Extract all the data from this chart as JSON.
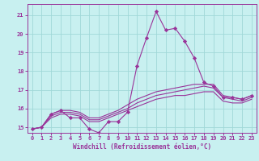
{
  "title": "",
  "xlabel": "Windchill (Refroidissement éolien,°C)",
  "ylabel": "",
  "background_color": "#c8f0f0",
  "grid_color": "#a0d8d8",
  "line_color": "#993399",
  "xlim": [
    -0.5,
    23.5
  ],
  "ylim": [
    14.7,
    21.6
  ],
  "yticks": [
    15,
    16,
    17,
    18,
    19,
    20,
    21
  ],
  "xticks": [
    0,
    1,
    2,
    3,
    4,
    5,
    6,
    7,
    8,
    9,
    10,
    11,
    12,
    13,
    14,
    15,
    16,
    17,
    18,
    19,
    20,
    21,
    22,
    23
  ],
  "x": [
    0,
    1,
    2,
    3,
    4,
    5,
    6,
    7,
    8,
    9,
    10,
    11,
    12,
    13,
    14,
    15,
    16,
    17,
    18,
    19,
    20,
    21,
    22,
    23
  ],
  "series": [
    [
      14.9,
      15.0,
      15.7,
      15.9,
      15.5,
      15.5,
      14.9,
      14.7,
      15.3,
      15.3,
      15.8,
      18.3,
      19.8,
      21.2,
      20.2,
      20.3,
      19.6,
      18.7,
      17.4,
      17.2,
      16.6,
      16.6,
      16.5,
      16.7
    ],
    [
      14.9,
      15.0,
      15.7,
      15.9,
      15.9,
      15.8,
      15.5,
      15.5,
      15.7,
      15.9,
      16.2,
      16.5,
      16.7,
      16.9,
      17.0,
      17.1,
      17.2,
      17.3,
      17.3,
      17.3,
      16.7,
      16.6,
      16.5,
      16.7
    ],
    [
      14.9,
      15.0,
      15.6,
      15.8,
      15.8,
      15.7,
      15.4,
      15.4,
      15.6,
      15.8,
      16.0,
      16.3,
      16.5,
      16.7,
      16.8,
      16.9,
      17.0,
      17.1,
      17.2,
      17.1,
      16.6,
      16.5,
      16.4,
      16.6
    ],
    [
      14.9,
      15.0,
      15.5,
      15.7,
      15.7,
      15.6,
      15.3,
      15.3,
      15.5,
      15.7,
      15.9,
      16.1,
      16.3,
      16.5,
      16.6,
      16.7,
      16.7,
      16.8,
      16.9,
      16.9,
      16.4,
      16.3,
      16.3,
      16.5
    ]
  ],
  "series_has_markers": [
    true,
    false,
    false,
    false
  ],
  "marker": "D",
  "marker_size": 2.2,
  "linewidth": 0.8,
  "tick_fontsize": 5.0,
  "xlabel_fontsize": 5.5
}
